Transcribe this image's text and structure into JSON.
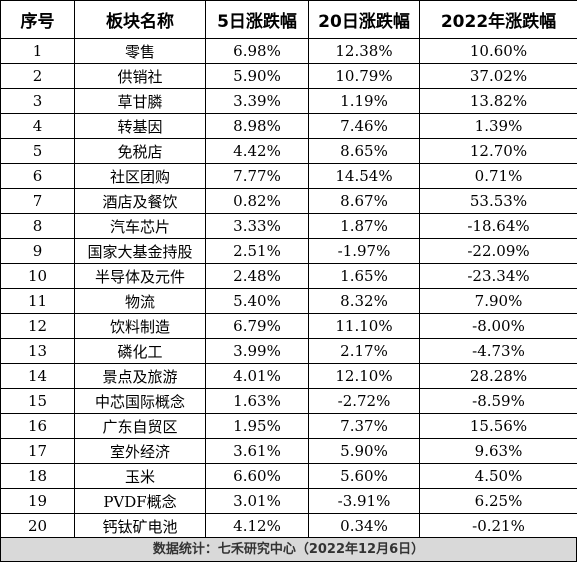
{
  "table": {
    "headers": [
      "序号",
      "板块名称",
      "5日涨跌幅",
      "20日涨跌幅",
      "2022年涨跌幅"
    ],
    "rows": [
      [
        "1",
        "零售",
        "6.98%",
        "12.38%",
        "10.60%"
      ],
      [
        "2",
        "供销社",
        "5.90%",
        "10.79%",
        "37.02%"
      ],
      [
        "3",
        "草甘膦",
        "3.39%",
        "1.19%",
        "13.82%"
      ],
      [
        "4",
        "转基因",
        "8.98%",
        "7.46%",
        "1.39%"
      ],
      [
        "5",
        "免税店",
        "4.42%",
        "8.65%",
        "12.70%"
      ],
      [
        "6",
        "社区团购",
        "7.77%",
        "14.54%",
        "0.71%"
      ],
      [
        "7",
        "酒店及餐饮",
        "0.82%",
        "8.67%",
        "53.53%"
      ],
      [
        "8",
        "汽车芯片",
        "3.33%",
        "1.87%",
        "-18.64%"
      ],
      [
        "9",
        "国家大基金持股",
        "2.51%",
        "-1.97%",
        "-22.09%"
      ],
      [
        "10",
        "半导体及元件",
        "2.48%",
        "1.65%",
        "-23.34%"
      ],
      [
        "11",
        "物流",
        "5.40%",
        "8.32%",
        "7.90%"
      ],
      [
        "12",
        "饮料制造",
        "6.79%",
        "11.10%",
        "-8.00%"
      ],
      [
        "13",
        "磷化工",
        "3.99%",
        "2.17%",
        "-4.73%"
      ],
      [
        "14",
        "景点及旅游",
        "4.01%",
        "12.10%",
        "28.28%"
      ],
      [
        "15",
        "中芯国际概念",
        "1.63%",
        "-2.72%",
        "-8.59%"
      ],
      [
        "16",
        "广东自贸区",
        "1.95%",
        "7.37%",
        "15.56%"
      ],
      [
        "17",
        "室外经济",
        "3.61%",
        "5.90%",
        "9.63%"
      ],
      [
        "18",
        "玉米",
        "6.60%",
        "5.60%",
        "4.50%"
      ],
      [
        "19",
        "PVDF概念",
        "3.01%",
        "-3.91%",
        "6.25%"
      ],
      [
        "20",
        "钙钛矿电池",
        "4.12%",
        "0.34%",
        "-0.21%"
      ]
    ]
  },
  "footer": {
    "text": "数据统计：七禾研究中心（2022年12月6日）"
  },
  "colors": {
    "border": "#000000",
    "footer_background": "#d9d9d9",
    "text": "#000000"
  }
}
